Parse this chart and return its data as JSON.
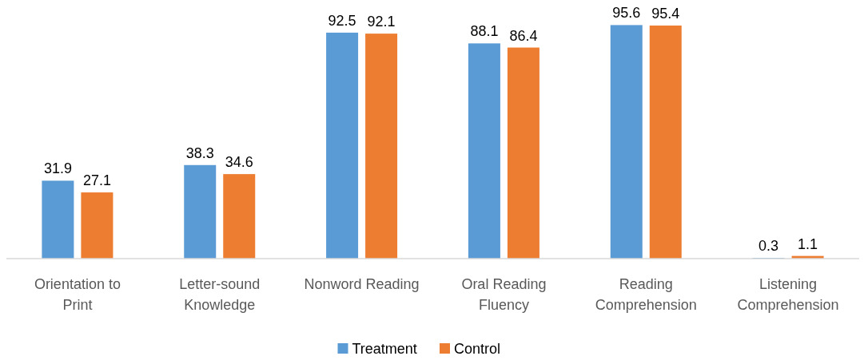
{
  "chart_data": {
    "type": "bar",
    "categories": [
      "Orientation to Print",
      "Letter-sound Knowledge",
      "Nonword Reading",
      "Oral Reading Fluency",
      "Reading Comprehension",
      "Listening Comprehension"
    ],
    "series": [
      {
        "name": "Treatment",
        "color": "#5b9bd5",
        "values": [
          31.9,
          38.3,
          92.5,
          88.1,
          95.6,
          0.3
        ]
      },
      {
        "name": "Control",
        "color": "#ed7d31",
        "values": [
          27.1,
          34.6,
          92.1,
          86.4,
          95.4,
          1.1
        ]
      }
    ],
    "data_labels": true,
    "legend": "bottom",
    "grid": false
  }
}
